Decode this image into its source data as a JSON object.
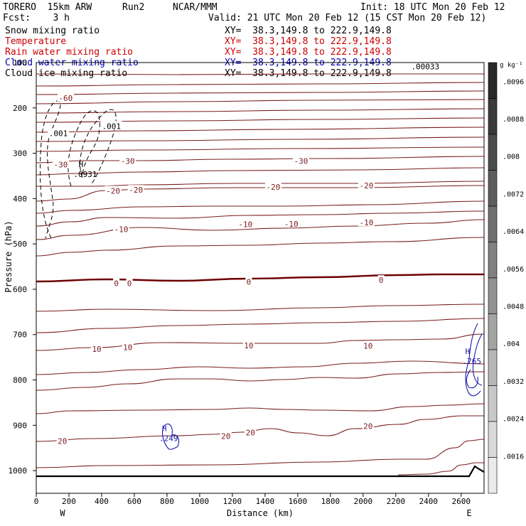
{
  "header": {
    "model": "TORERO  15km ARW",
    "run": "Run2",
    "org": "NCAR/MMM",
    "init": "Init: 18 UTC Mon 20 Feb 12",
    "fcst": "Fcst:    3 h",
    "valid": "Valid: 21 UTC Mon 20 Feb 12 (15 CST Mon 20 Feb 12)"
  },
  "fields": [
    {
      "name": "Snow mixing ratio",
      "xy": "XY=  38.3,149.8 to 222.9,149.8",
      "color": "#000000",
      "xy_color": "#000000"
    },
    {
      "name": "Temperature",
      "xy": "XY=  38.3,149.8 to 222.9,149.8",
      "color": "#cc0000",
      "xy_color": "#cc0000"
    },
    {
      "name": "Rain water mixing ratio",
      "xy": "XY=  38.3,149.8 to 222.9,149.8",
      "color": "#cc0000",
      "xy_color": "#cc0000"
    },
    {
      "name": "Cloud water mixing ratio",
      "xy": "XY=  38.3,149.8 to 222.9,149.8",
      "color": "#0000aa",
      "xy_color": "#0000aa"
    },
    {
      "name": "Cloud ice mixing ratio",
      "xy": "XY=  38.3,149.8 to 222.9,149.8",
      "color": "#000000",
      "xy_color": "#000000"
    }
  ],
  "colors": {
    "temperature": "#7a1c1c",
    "freezing": "#6e0000",
    "cloud_water": "#1a1aaa",
    "snow": "#000000",
    "terrain": "#000000"
  },
  "chart_data": {
    "type": "contour-cross-section",
    "xlabel": "Distance (km)",
    "ylabel": "Pressure (hPa)",
    "xlim": [
      0,
      2740
    ],
    "ylim": [
      1050,
      100
    ],
    "xticks": [
      0,
      200,
      400,
      600,
      800,
      1000,
      1200,
      1400,
      1600,
      1800,
      2000,
      2200,
      2400,
      2600
    ],
    "yticks": [
      200,
      300,
      400,
      500,
      600,
      700,
      800,
      900,
      1000
    ],
    "top_axis_label": "100",
    "left_end_label": "W",
    "right_end_label": "E",
    "colorbar": {
      "unit": "g kg⁻¹",
      "ticks": [
        ".0096",
        ".0088",
        ".008",
        ".0072",
        ".0064",
        ".0056",
        ".0048",
        ".004",
        ".0032",
        ".0024",
        ".0016"
      ],
      "top_value": 0.01,
      "bottom_value": 0.0008
    },
    "temperature_labels": [
      {
        "text": "-60",
        "x": 180,
        "p": 178
      },
      {
        "text": "-30",
        "x": 150,
        "p": 325
      },
      {
        "text": "-30",
        "x": 560,
        "p": 317
      },
      {
        "text": "-30",
        "x": 1620,
        "p": 317
      },
      {
        "text": "-20",
        "x": 470,
        "p": 383
      },
      {
        "text": "-20",
        "x": 610,
        "p": 381
      },
      {
        "text": "-20",
        "x": 1450,
        "p": 374
      },
      {
        "text": "-20",
        "x": 2020,
        "p": 371
      },
      {
        "text": "-10",
        "x": 520,
        "p": 468
      },
      {
        "text": "-10",
        "x": 1280,
        "p": 457
      },
      {
        "text": "-10",
        "x": 1560,
        "p": 456
      },
      {
        "text": "-10",
        "x": 2020,
        "p": 453
      },
      {
        "text": "0",
        "x": 490,
        "p": 587
      },
      {
        "text": "0",
        "x": 570,
        "p": 587
      },
      {
        "text": "0",
        "x": 1300,
        "p": 584
      },
      {
        "text": "0",
        "x": 2110,
        "p": 580
      },
      {
        "text": "10",
        "x": 370,
        "p": 732
      },
      {
        "text": "10",
        "x": 560,
        "p": 728
      },
      {
        "text": "10",
        "x": 1300,
        "p": 724
      },
      {
        "text": "10",
        "x": 2030,
        "p": 725
      },
      {
        "text": "20",
        "x": 160,
        "p": 935
      },
      {
        "text": "20",
        "x": 1160,
        "p": 924
      },
      {
        "text": "20",
        "x": 1310,
        "p": 916
      },
      {
        "text": "20",
        "x": 2030,
        "p": 902
      }
    ],
    "snow_labels": [
      {
        "text": ".001",
        "x": 135,
        "p": 256
      },
      {
        "text": ".001",
        "x": 460,
        "p": 240
      }
    ],
    "maxima": [
      {
        "marker": "H",
        "value": ".0931",
        "x": 300,
        "p": 340,
        "field": "snow"
      },
      {
        "marker": "H",
        "value": ".249",
        "x": 810,
        "p": 922,
        "field": "cloud_water"
      },
      {
        "marker": "H",
        "value": ".765",
        "x": 2665,
        "p": 752,
        "field": "cloud_water"
      },
      {
        "marker": "",
        "value": ".00033",
        "x": 2380,
        "p": 102,
        "field": "cloud_ice"
      }
    ]
  }
}
